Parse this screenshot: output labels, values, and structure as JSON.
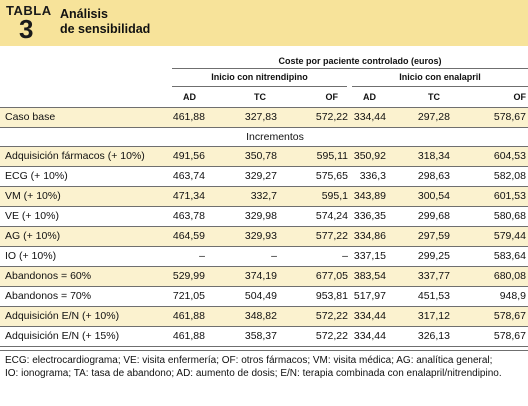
{
  "table": {
    "label": "TABLA",
    "number": "3",
    "title_line1": "Análisis",
    "title_line2": "de sensibilidad"
  },
  "headers": {
    "cost_group": "Coste por paciente controlado (euros)",
    "group1": "Inicio con nitrendipino",
    "group2": "Inicio con enalapril",
    "cols": [
      "AD",
      "TC",
      "OF",
      "AD",
      "TC",
      "OF"
    ]
  },
  "base": {
    "label": "Caso base",
    "values": [
      "461,88",
      "327,83",
      "572,22",
      "334,44",
      "297,28",
      "578,67"
    ]
  },
  "section_label": "Incrementos",
  "rows": [
    {
      "label": "Adquisición fármacos (+ 10%)",
      "values": [
        "491,56",
        "350,78",
        "595,11",
        "350,92",
        "318,34",
        "604,53"
      ]
    },
    {
      "label": "ECG (+ 10%)",
      "values": [
        "463,74",
        "329,27",
        "575,65",
        "336,3",
        "298,63",
        "582,08"
      ]
    },
    {
      "label": "VM (+ 10%)",
      "values": [
        "471,34",
        "332,7",
        "595,1",
        "343,89",
        "300,54",
        "601,53"
      ]
    },
    {
      "label": "VE (+ 10%)",
      "values": [
        "463,78",
        "329,98",
        "574,24",
        "336,35",
        "299,68",
        "580,68"
      ]
    },
    {
      "label": "AG (+ 10%)",
      "values": [
        "464,59",
        "329,93",
        "577,22",
        "334,86",
        "297,59",
        "579,44"
      ]
    },
    {
      "label": "IO (+ 10%)",
      "values": [
        "–",
        "–",
        "–",
        "337,15",
        "299,25",
        "583,64"
      ]
    },
    {
      "label": "Abandonos = 60%",
      "values": [
        "529,99",
        "374,19",
        "677,05",
        "383,54",
        "337,77",
        "680,08"
      ]
    },
    {
      "label": "Abandonos = 70%",
      "values": [
        "721,05",
        "504,49",
        "953,81",
        "517,97",
        "451,53",
        "948,9"
      ]
    },
    {
      "label": "Adquisición E/N (+ 10%)",
      "values": [
        "461,88",
        "348,82",
        "572,22",
        "334,44",
        "317,12",
        "578,67"
      ]
    },
    {
      "label": "Adquisición E/N (+ 15%)",
      "values": [
        "461,88",
        "358,37",
        "572,22",
        "334,44",
        "326,13",
        "578,67"
      ]
    }
  ],
  "footnotes": [
    "ECG: electrocardiograma; VE: visita enfermería; OF: otros fármacos; VM: visita médica; AG: analítica general;",
    "IO:  ionograma; TA: tasa de abandono; AD: aumento de dosis; E/N: terapia combinada con enalapril/nitrendipino."
  ]
}
